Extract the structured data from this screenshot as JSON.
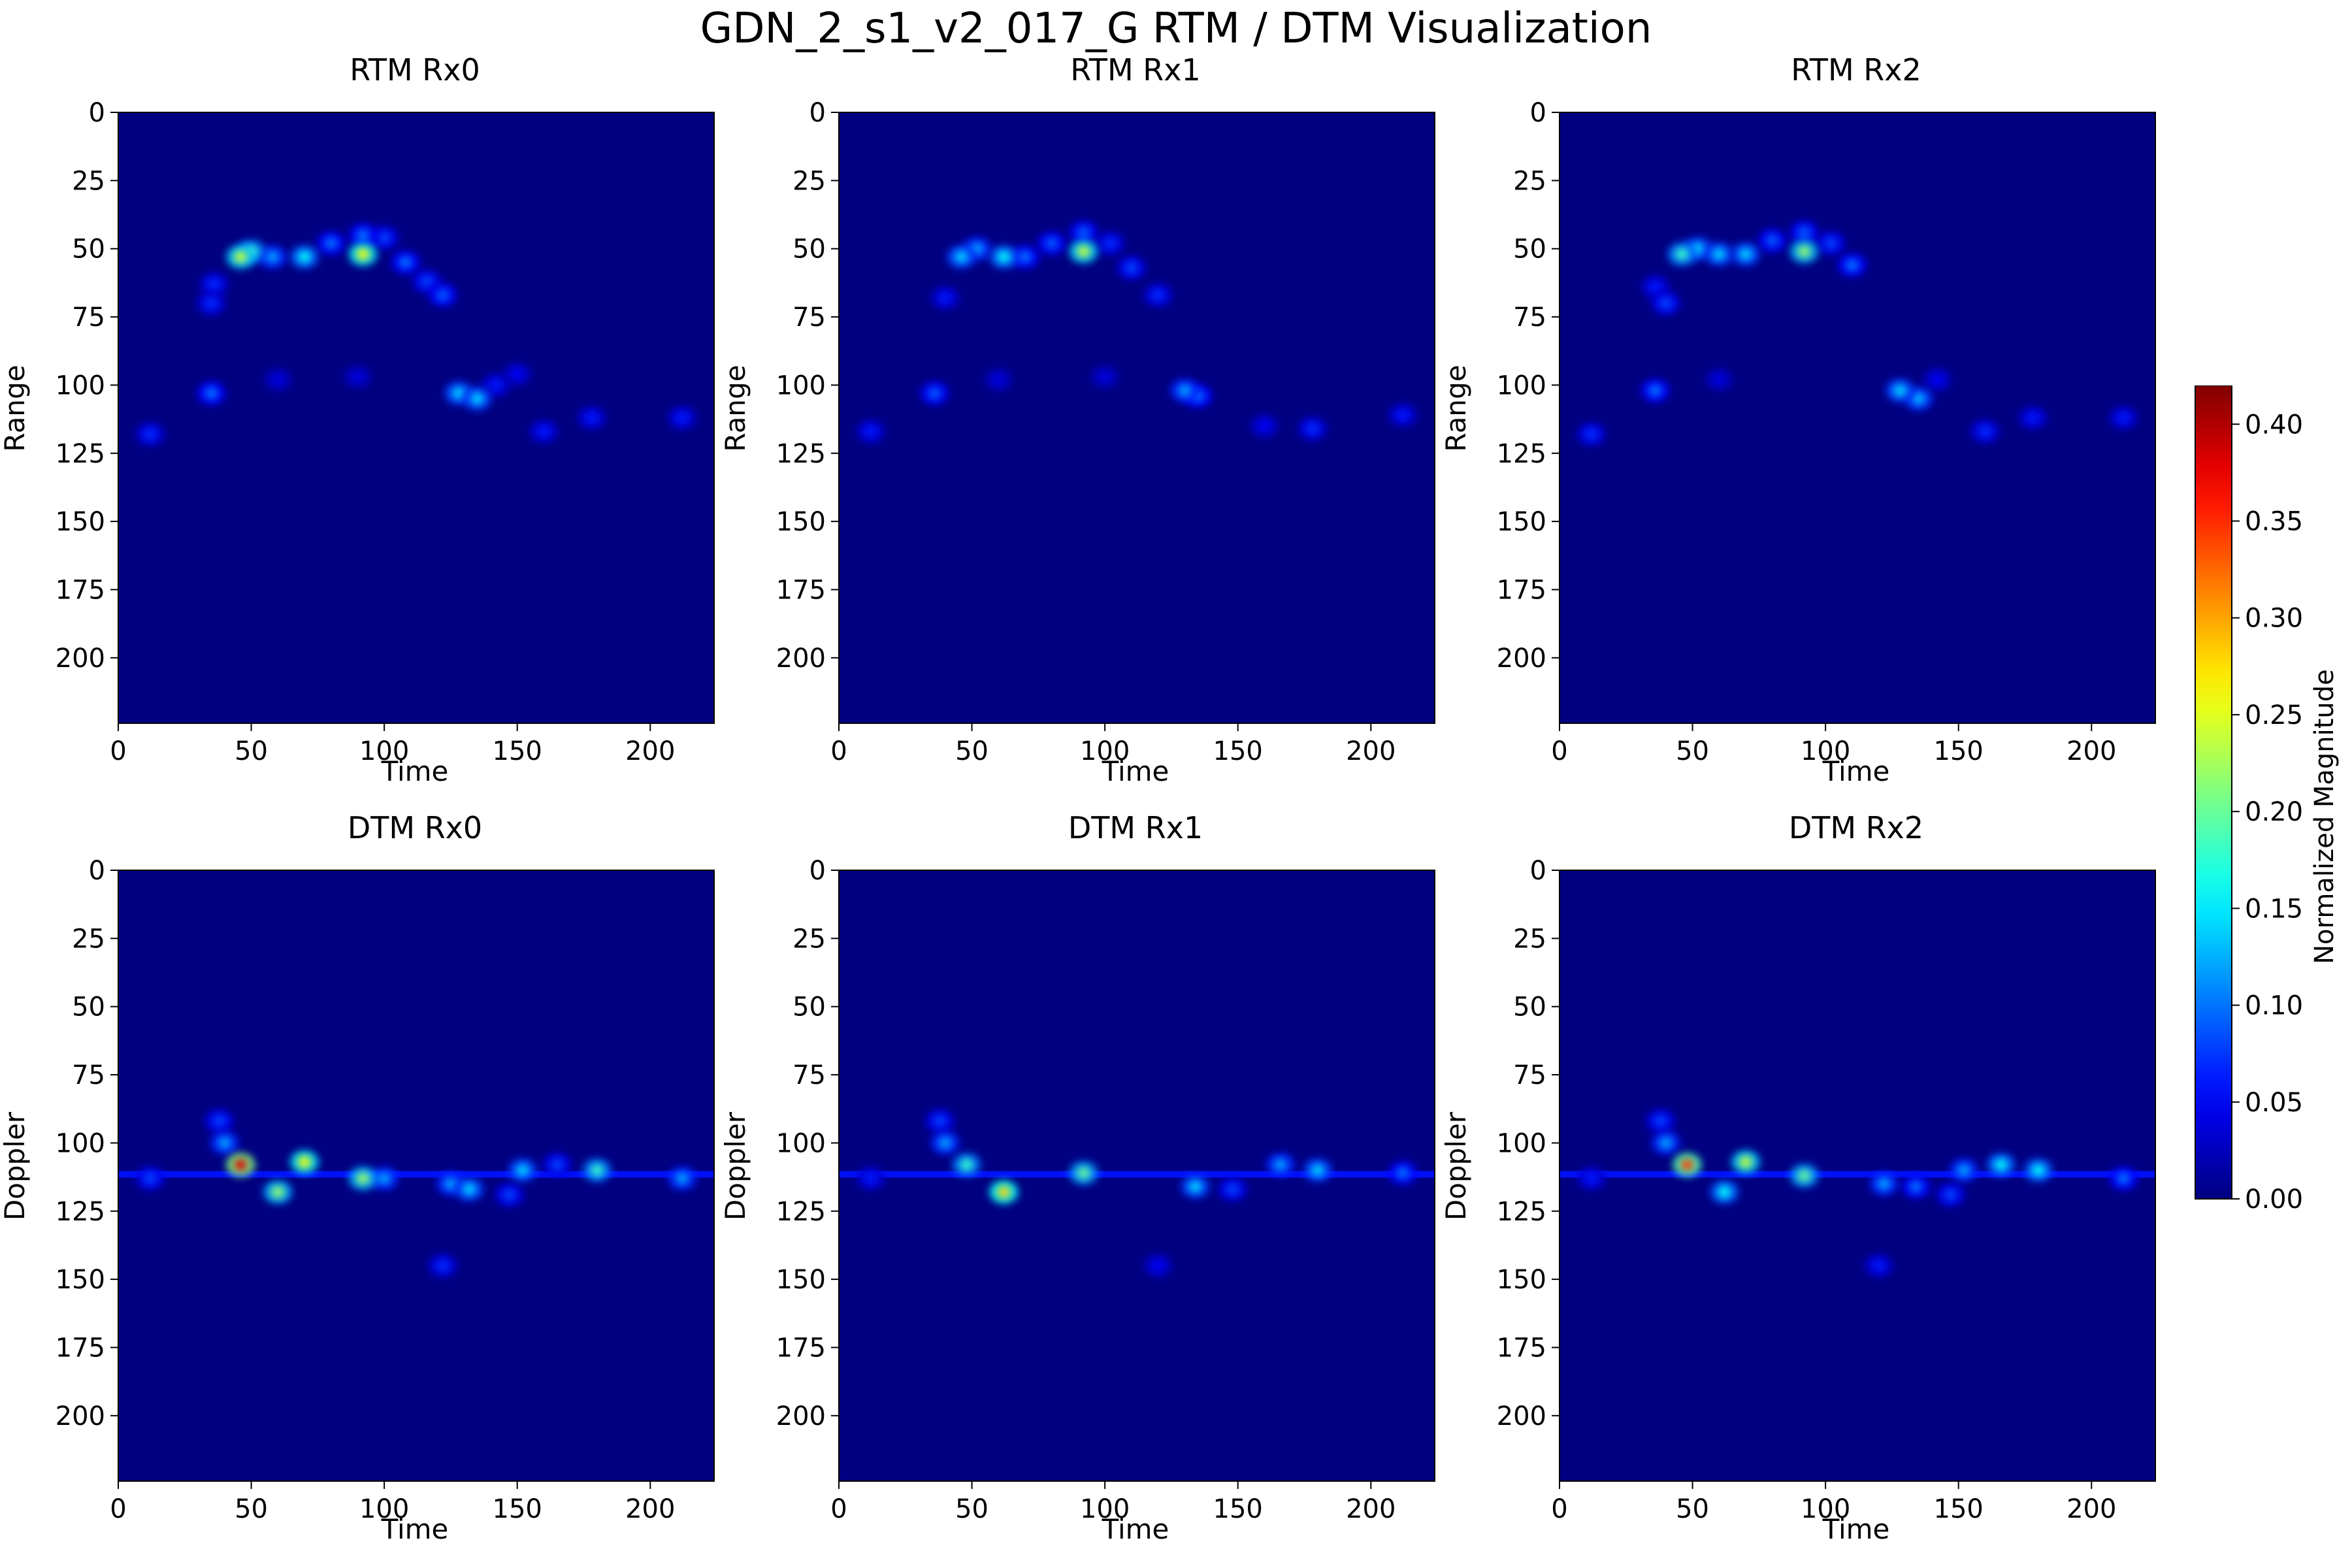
{
  "figure": {
    "title": "GDN_2_s1_v2_017_G RTM / DTM Visualization"
  },
  "colorbar": {
    "label": "Normalized Magnitude",
    "colormap": "jet",
    "range": [
      0.0,
      0.42
    ],
    "ticks": [
      "0.00",
      "0.05",
      "0.10",
      "0.15",
      "0.20",
      "0.25",
      "0.30",
      "0.35",
      "0.40"
    ]
  },
  "chart_data": [
    {
      "type": "heatmap",
      "title": "RTM Rx0",
      "xlabel": "Time",
      "ylabel": "Range",
      "xlim": [
        0,
        224
      ],
      "ylim": [
        224,
        0
      ],
      "xticks": [
        "0",
        "50",
        "100",
        "150",
        "200"
      ],
      "yticks": [
        "0",
        "25",
        "50",
        "75",
        "100",
        "125",
        "150",
        "175",
        "200"
      ],
      "background_value": 0.0,
      "hotspots": [
        {
          "x": 46,
          "y": 53,
          "v": 0.24
        },
        {
          "x": 50,
          "y": 51,
          "v": 0.18
        },
        {
          "x": 58,
          "y": 53,
          "v": 0.12
        },
        {
          "x": 70,
          "y": 53,
          "v": 0.16
        },
        {
          "x": 80,
          "y": 48,
          "v": 0.1
        },
        {
          "x": 92,
          "y": 52,
          "v": 0.26
        },
        {
          "x": 92,
          "y": 45,
          "v": 0.1
        },
        {
          "x": 100,
          "y": 46,
          "v": 0.08
        },
        {
          "x": 108,
          "y": 55,
          "v": 0.1
        },
        {
          "x": 116,
          "y": 62,
          "v": 0.08
        },
        {
          "x": 122,
          "y": 67,
          "v": 0.09
        },
        {
          "x": 36,
          "y": 63,
          "v": 0.07
        },
        {
          "x": 35,
          "y": 70,
          "v": 0.07
        },
        {
          "x": 35,
          "y": 103,
          "v": 0.1
        },
        {
          "x": 12,
          "y": 118,
          "v": 0.07
        },
        {
          "x": 128,
          "y": 103,
          "v": 0.14
        },
        {
          "x": 135,
          "y": 105,
          "v": 0.14
        },
        {
          "x": 142,
          "y": 100,
          "v": 0.06
        },
        {
          "x": 160,
          "y": 117,
          "v": 0.06
        },
        {
          "x": 178,
          "y": 112,
          "v": 0.06
        },
        {
          "x": 212,
          "y": 112,
          "v": 0.06
        },
        {
          "x": 150,
          "y": 96,
          "v": 0.05
        },
        {
          "x": 60,
          "y": 98,
          "v": 0.04
        },
        {
          "x": 90,
          "y": 97,
          "v": 0.04
        }
      ]
    },
    {
      "type": "heatmap",
      "title": "RTM Rx1",
      "xlabel": "Time",
      "ylabel": "Range",
      "xlim": [
        0,
        224
      ],
      "ylim": [
        224,
        0
      ],
      "xticks": [
        "0",
        "50",
        "100",
        "150",
        "200"
      ],
      "yticks": [
        "0",
        "25",
        "50",
        "75",
        "100",
        "125",
        "150",
        "175",
        "200"
      ],
      "background_value": 0.0,
      "hotspots": [
        {
          "x": 46,
          "y": 53,
          "v": 0.14
        },
        {
          "x": 52,
          "y": 50,
          "v": 0.12
        },
        {
          "x": 62,
          "y": 53,
          "v": 0.16
        },
        {
          "x": 70,
          "y": 53,
          "v": 0.1
        },
        {
          "x": 80,
          "y": 48,
          "v": 0.09
        },
        {
          "x": 92,
          "y": 51,
          "v": 0.24
        },
        {
          "x": 92,
          "y": 44,
          "v": 0.09
        },
        {
          "x": 102,
          "y": 48,
          "v": 0.07
        },
        {
          "x": 110,
          "y": 57,
          "v": 0.08
        },
        {
          "x": 120,
          "y": 67,
          "v": 0.07
        },
        {
          "x": 40,
          "y": 68,
          "v": 0.06
        },
        {
          "x": 36,
          "y": 103,
          "v": 0.09
        },
        {
          "x": 12,
          "y": 117,
          "v": 0.06
        },
        {
          "x": 130,
          "y": 102,
          "v": 0.12
        },
        {
          "x": 135,
          "y": 104,
          "v": 0.1
        },
        {
          "x": 178,
          "y": 116,
          "v": 0.07
        },
        {
          "x": 160,
          "y": 115,
          "v": 0.05
        },
        {
          "x": 212,
          "y": 111,
          "v": 0.06
        },
        {
          "x": 60,
          "y": 98,
          "v": 0.04
        },
        {
          "x": 100,
          "y": 97,
          "v": 0.04
        }
      ]
    },
    {
      "type": "heatmap",
      "title": "RTM Rx2",
      "xlabel": "Time",
      "ylabel": "Range",
      "xlim": [
        0,
        224
      ],
      "ylim": [
        224,
        0
      ],
      "xticks": [
        "0",
        "50",
        "100",
        "150",
        "200"
      ],
      "yticks": [
        "0",
        "25",
        "50",
        "75",
        "100",
        "125",
        "150",
        "175",
        "200"
      ],
      "background_value": 0.0,
      "hotspots": [
        {
          "x": 46,
          "y": 52,
          "v": 0.18
        },
        {
          "x": 52,
          "y": 50,
          "v": 0.14
        },
        {
          "x": 60,
          "y": 52,
          "v": 0.14
        },
        {
          "x": 70,
          "y": 52,
          "v": 0.14
        },
        {
          "x": 80,
          "y": 47,
          "v": 0.09
        },
        {
          "x": 92,
          "y": 51,
          "v": 0.22
        },
        {
          "x": 92,
          "y": 44,
          "v": 0.09
        },
        {
          "x": 102,
          "y": 48,
          "v": 0.08
        },
        {
          "x": 110,
          "y": 56,
          "v": 0.1
        },
        {
          "x": 36,
          "y": 64,
          "v": 0.06
        },
        {
          "x": 40,
          "y": 70,
          "v": 0.08
        },
        {
          "x": 36,
          "y": 102,
          "v": 0.1
        },
        {
          "x": 12,
          "y": 118,
          "v": 0.07
        },
        {
          "x": 128,
          "y": 102,
          "v": 0.14
        },
        {
          "x": 135,
          "y": 105,
          "v": 0.13
        },
        {
          "x": 142,
          "y": 98,
          "v": 0.05
        },
        {
          "x": 160,
          "y": 117,
          "v": 0.07
        },
        {
          "x": 178,
          "y": 112,
          "v": 0.06
        },
        {
          "x": 212,
          "y": 112,
          "v": 0.06
        },
        {
          "x": 60,
          "y": 98,
          "v": 0.04
        }
      ]
    },
    {
      "type": "heatmap",
      "title": "DTM Rx0",
      "xlabel": "Time",
      "ylabel": "Doppler",
      "xlim": [
        0,
        224
      ],
      "ylim": [
        224,
        0
      ],
      "xticks": [
        "0",
        "50",
        "100",
        "150",
        "200"
      ],
      "yticks": [
        "0",
        "25",
        "50",
        "75",
        "100",
        "125",
        "150",
        "175",
        "200"
      ],
      "background_value": 0.0,
      "hotspots": [
        {
          "x": 46,
          "y": 108,
          "v": 0.38
        },
        {
          "x": 70,
          "y": 107,
          "v": 0.26
        },
        {
          "x": 92,
          "y": 113,
          "v": 0.22
        },
        {
          "x": 60,
          "y": 118,
          "v": 0.22
        },
        {
          "x": 40,
          "y": 100,
          "v": 0.12
        },
        {
          "x": 38,
          "y": 92,
          "v": 0.08
        },
        {
          "x": 100,
          "y": 113,
          "v": 0.12
        },
        {
          "x": 125,
          "y": 115,
          "v": 0.12
        },
        {
          "x": 132,
          "y": 117,
          "v": 0.14
        },
        {
          "x": 152,
          "y": 110,
          "v": 0.14
        },
        {
          "x": 180,
          "y": 110,
          "v": 0.18
        },
        {
          "x": 212,
          "y": 113,
          "v": 0.12
        },
        {
          "x": 122,
          "y": 145,
          "v": 0.07
        },
        {
          "x": 12,
          "y": 113,
          "v": 0.08
        },
        {
          "x": 147,
          "y": 119,
          "v": 0.08
        },
        {
          "x": 165,
          "y": 108,
          "v": 0.08
        }
      ],
      "bands": [
        {
          "y": 111,
          "v": 0.06
        },
        {
          "y": 112,
          "v": 0.06
        }
      ]
    },
    {
      "type": "heatmap",
      "title": "DTM Rx1",
      "xlabel": "Time",
      "ylabel": "Doppler",
      "xlim": [
        0,
        224
      ],
      "ylim": [
        224,
        0
      ],
      "xticks": [
        "0",
        "50",
        "100",
        "150",
        "200"
      ],
      "yticks": [
        "0",
        "25",
        "50",
        "75",
        "100",
        "125",
        "150",
        "175",
        "200"
      ],
      "background_value": 0.0,
      "hotspots": [
        {
          "x": 62,
          "y": 118,
          "v": 0.28
        },
        {
          "x": 48,
          "y": 108,
          "v": 0.18
        },
        {
          "x": 40,
          "y": 100,
          "v": 0.12
        },
        {
          "x": 38,
          "y": 92,
          "v": 0.08
        },
        {
          "x": 92,
          "y": 111,
          "v": 0.2
        },
        {
          "x": 134,
          "y": 116,
          "v": 0.14
        },
        {
          "x": 166,
          "y": 108,
          "v": 0.12
        },
        {
          "x": 180,
          "y": 110,
          "v": 0.14
        },
        {
          "x": 212,
          "y": 111,
          "v": 0.1
        },
        {
          "x": 120,
          "y": 145,
          "v": 0.05
        },
        {
          "x": 148,
          "y": 117,
          "v": 0.08
        },
        {
          "x": 12,
          "y": 113,
          "v": 0.06
        }
      ],
      "bands": [
        {
          "y": 111,
          "v": 0.06
        },
        {
          "y": 112,
          "v": 0.06
        }
      ]
    },
    {
      "type": "heatmap",
      "title": "DTM Rx2",
      "xlabel": "Time",
      "ylabel": "Doppler",
      "xlim": [
        0,
        224
      ],
      "ylim": [
        224,
        0
      ],
      "xticks": [
        "0",
        "50",
        "100",
        "150",
        "200"
      ],
      "yticks": [
        "0",
        "25",
        "50",
        "75",
        "100",
        "125",
        "150",
        "175",
        "200"
      ],
      "background_value": 0.0,
      "hotspots": [
        {
          "x": 48,
          "y": 108,
          "v": 0.34
        },
        {
          "x": 70,
          "y": 107,
          "v": 0.24
        },
        {
          "x": 62,
          "y": 118,
          "v": 0.16
        },
        {
          "x": 40,
          "y": 100,
          "v": 0.12
        },
        {
          "x": 38,
          "y": 92,
          "v": 0.08
        },
        {
          "x": 92,
          "y": 112,
          "v": 0.2
        },
        {
          "x": 122,
          "y": 115,
          "v": 0.12
        },
        {
          "x": 134,
          "y": 116,
          "v": 0.1
        },
        {
          "x": 152,
          "y": 110,
          "v": 0.12
        },
        {
          "x": 166,
          "y": 108,
          "v": 0.16
        },
        {
          "x": 180,
          "y": 110,
          "v": 0.16
        },
        {
          "x": 212,
          "y": 113,
          "v": 0.1
        },
        {
          "x": 120,
          "y": 145,
          "v": 0.06
        },
        {
          "x": 12,
          "y": 113,
          "v": 0.06
        },
        {
          "x": 147,
          "y": 119,
          "v": 0.08
        }
      ],
      "bands": [
        {
          "y": 111,
          "v": 0.06
        },
        {
          "y": 112,
          "v": 0.06
        }
      ]
    }
  ]
}
